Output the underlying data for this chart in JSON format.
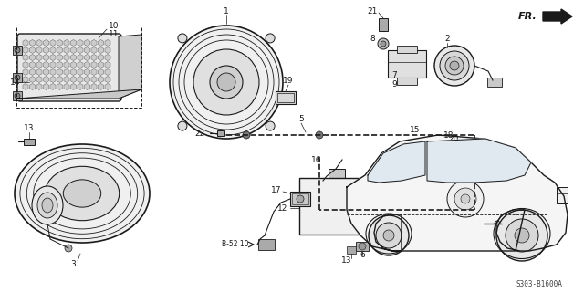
{
  "bg_color": "#ffffff",
  "line_color": "#1a1a1a",
  "diagram_code": "S303-B1600A",
  "figsize": [
    6.4,
    3.2
  ],
  "dpi": 100
}
